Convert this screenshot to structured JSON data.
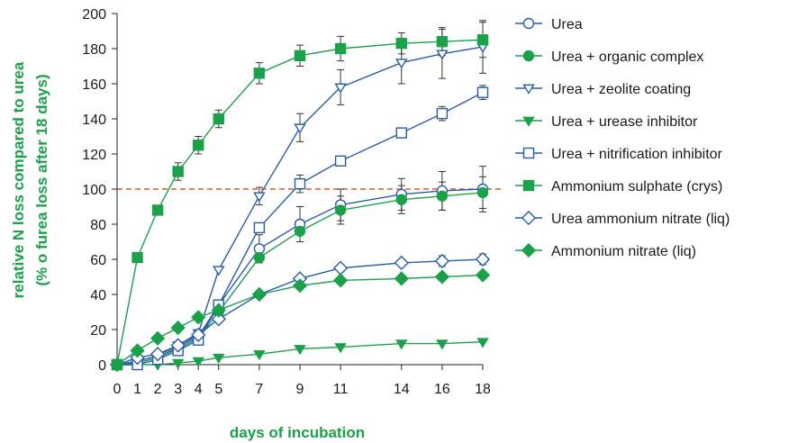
{
  "chart_data": {
    "type": "line",
    "xlabel": "days of incubation",
    "ylabel": "relative N loss compared to urea",
    "ylabel_sub": "(% o furea loss after 18 days)",
    "x_ticks": [
      "0",
      "1",
      "2",
      "3",
      "4",
      "5",
      "7",
      "9",
      "11",
      "14",
      "16",
      "18"
    ],
    "y_ticks": [
      "0",
      "20",
      "40",
      "60",
      "80",
      "100",
      "120",
      "140",
      "160",
      "180",
      "200"
    ],
    "xlim": [
      0,
      18
    ],
    "ylim": [
      0,
      200
    ],
    "reference_line": {
      "y": 100,
      "color": "#e05a2a",
      "style": "dashed"
    },
    "legend_position": "right",
    "colors": {
      "blue": "#2a5ca8",
      "green": "#1aa14a"
    },
    "series": [
      {
        "name": "Urea",
        "color": "#2a5ca8",
        "marker": "circle",
        "filled": false,
        "x": [
          0,
          1,
          2,
          3,
          4,
          5,
          7,
          9,
          11,
          14,
          16,
          18
        ],
        "y": [
          0,
          1,
          4,
          10,
          16,
          34,
          66,
          80,
          91,
          97,
          99,
          100
        ]
      },
      {
        "name": "Urea + organic complex",
        "color": "#1aa14a",
        "marker": "circle",
        "filled": true,
        "x": [
          0,
          1,
          2,
          3,
          4,
          5,
          7,
          9,
          11,
          14,
          16,
          18
        ],
        "y": [
          0,
          1,
          4,
          9,
          15,
          30,
          61,
          76,
          88,
          94,
          96,
          98
        ]
      },
      {
        "name": "Urea + zeolite coating",
        "color": "#2a5ca8",
        "marker": "triangle-down",
        "filled": false,
        "x": [
          0,
          1,
          2,
          3,
          4,
          5,
          7,
          9,
          11,
          14,
          16,
          18
        ],
        "y": [
          0,
          2,
          5,
          11,
          18,
          54,
          96,
          135,
          158,
          172,
          177,
          181
        ]
      },
      {
        "name": "Urea + urease inhibitor",
        "color": "#1aa14a",
        "marker": "triangle-down",
        "filled": true,
        "x": [
          0,
          1,
          2,
          3,
          4,
          5,
          7,
          9,
          11,
          14,
          16,
          18
        ],
        "y": [
          0,
          0,
          0,
          1,
          2,
          4,
          6,
          9,
          10,
          12,
          12,
          13
        ]
      },
      {
        "name": "Urea + nitrification inhibitor",
        "color": "#2a5ca8",
        "marker": "square",
        "filled": false,
        "x": [
          0,
          1,
          2,
          3,
          4,
          5,
          7,
          9,
          11,
          14,
          16,
          18
        ],
        "y": [
          0,
          0,
          3,
          8,
          14,
          34,
          78,
          103,
          116,
          132,
          143,
          155
        ]
      },
      {
        "name": "Ammonium sulphate (crys)",
        "color": "#1aa14a",
        "marker": "square",
        "filled": true,
        "x": [
          0,
          1,
          2,
          3,
          4,
          5,
          7,
          9,
          11,
          14,
          16,
          18
        ],
        "y": [
          0,
          61,
          88,
          110,
          125,
          140,
          166,
          176,
          180,
          183,
          184,
          185
        ]
      },
      {
        "name": "Urea ammonium nitrate (liq)",
        "color": "#2a5ca8",
        "marker": "diamond",
        "filled": false,
        "x": [
          0,
          1,
          2,
          3,
          4,
          5,
          7,
          9,
          11,
          14,
          16,
          18
        ],
        "y": [
          0,
          4,
          6,
          11,
          17,
          26,
          40,
          49,
          55,
          58,
          59,
          60
        ]
      },
      {
        "name": "Ammonium nitrate (liq)",
        "color": "#1aa14a",
        "marker": "diamond",
        "filled": true,
        "x": [
          0,
          1,
          2,
          3,
          4,
          5,
          7,
          9,
          11,
          14,
          16,
          18
        ],
        "y": [
          0,
          8,
          15,
          21,
          27,
          31,
          40,
          45,
          48,
          49,
          50,
          51
        ]
      }
    ],
    "error_bars": [
      {
        "series": "Urea",
        "x": [
          7,
          9,
          11,
          14,
          16,
          18
        ],
        "err": [
          8,
          10,
          9,
          9,
          11,
          13
        ]
      },
      {
        "series": "Urea + zeolite coating",
        "x": [
          7,
          9,
          11,
          14,
          16,
          18
        ],
        "err": [
          5,
          8,
          10,
          12,
          14,
          15
        ]
      },
      {
        "series": "Ammonium sulphate (crys)",
        "x": [
          3,
          4,
          5,
          7,
          9,
          11,
          14,
          16,
          18
        ],
        "err": [
          5,
          5,
          5,
          6,
          6,
          7,
          6,
          8,
          10
        ]
      },
      {
        "series": "Urea + nitrification inhibitor",
        "x": [
          9,
          16,
          18
        ],
        "err": [
          5,
          4,
          4
        ]
      },
      {
        "series": "Urea + organic complex",
        "x": [
          11,
          14,
          16,
          18
        ],
        "err": [
          8,
          8,
          8,
          9
        ]
      },
      {
        "series": "Urea ammonium nitrate (liq)",
        "x": [
          16,
          18
        ],
        "err": [
          3,
          3
        ]
      }
    ]
  }
}
